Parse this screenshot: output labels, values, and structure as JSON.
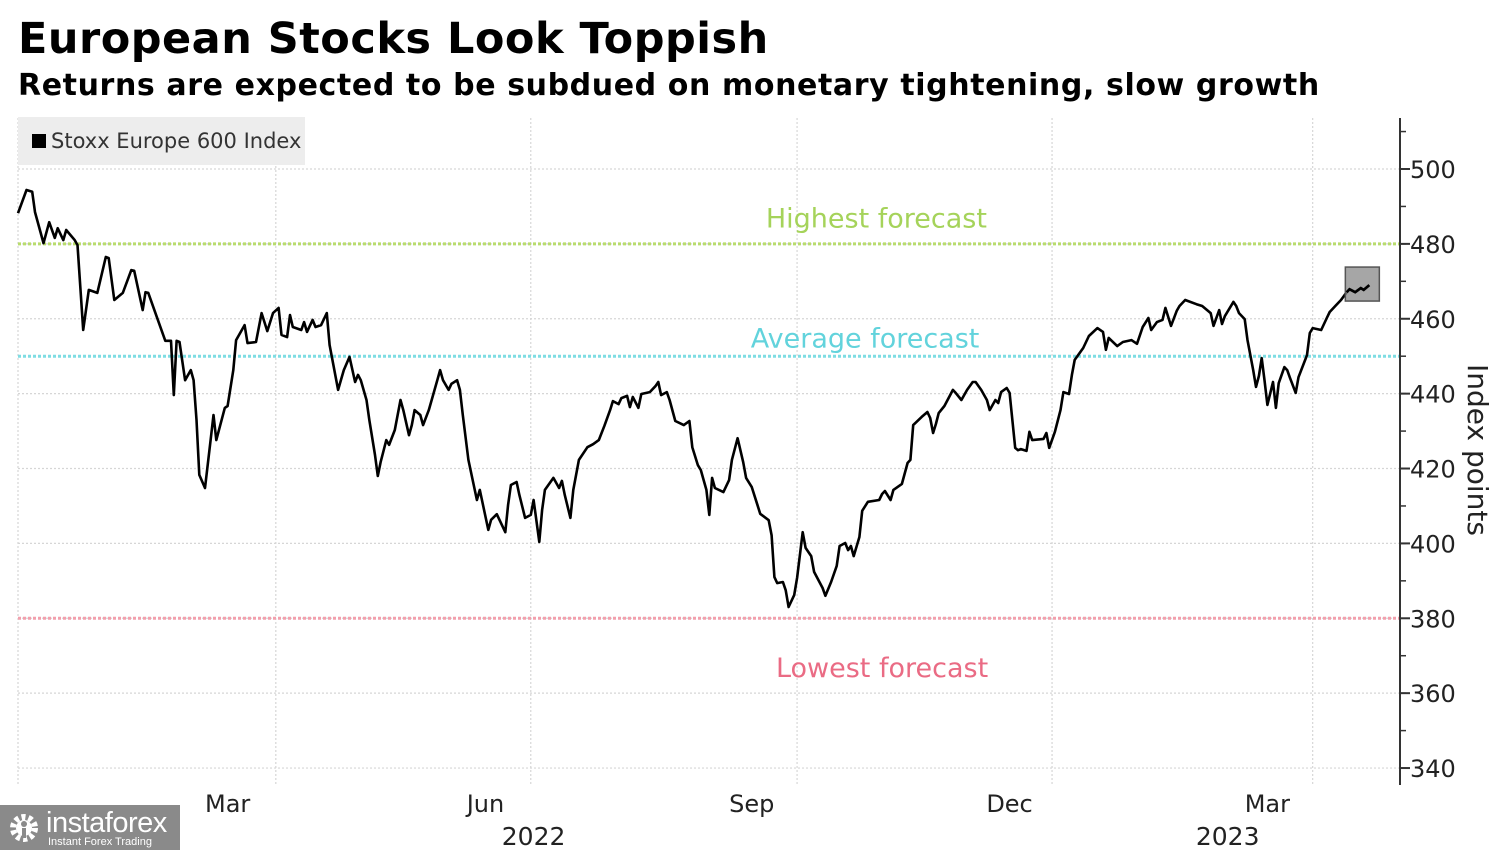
{
  "chart_data": {
    "type": "line",
    "title": "European Stocks Look Toppish",
    "subtitle": "Returns are expected to be subdued on monetary tightening, slow growth",
    "ylabel": "Index points",
    "xlabel": "",
    "x_unit": "days since start of 2022",
    "xlim": [
      0,
      486
    ],
    "ylim": [
      335,
      513
    ],
    "grid": true,
    "legend": {
      "position": "top-left",
      "entries": [
        "Stoxx Europe 600 Index"
      ]
    },
    "y_ticks": [
      340,
      360,
      380,
      400,
      420,
      440,
      460,
      480,
      500
    ],
    "y_tick_labels": [
      "340",
      "360",
      "380",
      "400",
      "420",
      "440",
      "460",
      "480",
      "500"
    ],
    "x_gridlines": [
      0,
      91,
      181,
      275,
      365,
      457
    ],
    "x_ticks": [
      {
        "x": 74,
        "label": "Mar"
      },
      {
        "x": 165,
        "label": "Jun"
      },
      {
        "x": 259,
        "label": "Sep"
      },
      {
        "x": 350,
        "label": "Dec"
      },
      {
        "x": 441,
        "label": "Mar"
      }
    ],
    "year_labels": [
      {
        "x": 182,
        "label": "2022"
      },
      {
        "x": 427,
        "label": "2023"
      }
    ],
    "reference_lines": [
      {
        "label": "Highest forecast",
        "value": 480,
        "color": "#b9dc6e",
        "text_color": "#a5d35a",
        "label_x": 303
      },
      {
        "label": "Average forecast",
        "value": 450,
        "color": "#7fdde3",
        "text_color": "#62d3dc",
        "label_x": 299
      },
      {
        "label": "Lowest forecast",
        "value": 380,
        "color": "#f2a0ad",
        "text_color": "#ea6b84",
        "label_x": 305
      }
    ],
    "label_values": {
      "Highest forecast": 487,
      "Average forecast": 455,
      "Lowest forecast": 367
    },
    "series": [
      {
        "name": "Stoxx Europe 600 Index",
        "color": "#000000",
        "x": [
          0,
          3,
          5,
          6,
          9,
          11,
          13,
          14,
          16,
          17,
          20,
          21,
          23,
          25,
          28,
          31,
          32,
          34,
          37,
          40,
          41,
          44,
          45,
          46,
          49,
          52,
          54,
          55,
          56,
          57,
          59,
          61,
          62,
          63,
          64,
          66,
          68,
          69,
          70,
          73,
          74,
          76,
          77,
          80,
          81,
          84,
          86,
          88,
          90,
          92,
          93,
          95,
          96,
          97,
          100,
          101,
          102,
          104,
          105,
          107,
          109,
          110,
          113,
          115,
          117,
          119,
          120,
          121,
          123,
          124,
          126,
          127,
          128,
          130,
          131,
          133,
          135,
          136,
          138,
          139,
          140,
          142,
          143,
          145,
          148,
          149,
          150,
          152,
          153,
          155,
          156,
          157,
          159,
          162,
          163,
          166,
          167,
          169,
          172,
          173,
          174,
          176,
          177,
          179,
          181,
          182,
          184,
          185,
          186,
          189,
          191,
          192,
          193,
          195,
          196,
          198,
          201,
          203,
          205,
          207,
          209,
          210,
          212,
          213,
          215,
          216,
          217,
          219,
          220,
          223,
          225,
          226,
          227,
          229,
          230,
          232,
          235,
          237,
          238,
          240,
          241,
          243,
          244,
          245,
          246,
          249,
          251,
          252,
          254,
          256,
          257,
          259,
          261,
          262,
          265,
          266,
          267,
          268,
          270,
          271,
          272,
          274,
          275,
          277,
          278,
          280,
          281,
          284,
          285,
          287,
          289,
          290,
          292,
          293,
          294,
          295,
          297,
          298,
          300,
          304,
          305,
          306,
          308,
          309,
          312,
          314,
          315,
          316,
          319,
          321,
          322,
          323,
          324,
          325,
          327,
          330,
          331,
          333,
          335,
          337,
          338,
          340,
          342,
          343,
          345,
          346,
          347,
          349,
          350,
          352,
          353,
          354,
          356,
          357,
          358,
          362,
          363,
          364,
          366,
          368,
          369,
          371,
          372,
          373,
          376,
          378,
          381,
          383,
          384,
          385,
          388,
          390,
          393,
          395,
          397,
          399,
          400,
          402,
          404,
          405,
          407,
          409,
          410,
          412,
          416,
          418,
          421,
          422,
          424,
          425,
          426,
          429,
          430,
          431,
          433,
          434,
          436,
          437,
          438,
          439,
          440,
          441,
          443,
          444,
          445,
          447,
          448,
          449,
          451,
          452,
          455,
          456,
          457,
          460,
          462,
          463,
          465,
          467,
          469,
          470,
          472,
          474,
          475,
          477
        ],
        "values": [
          488.2,
          494.4,
          493.9,
          488.5,
          480.2,
          485.8,
          481.6,
          484.2,
          481.0,
          483.7,
          481.0,
          479.7,
          457.0,
          467.7,
          466.9,
          476.5,
          476.2,
          465.0,
          466.9,
          473.0,
          472.8,
          462.3,
          467.1,
          466.9,
          460.5,
          454.1,
          454.1,
          439.6,
          454.1,
          453.8,
          443.6,
          446.3,
          443.6,
          433.0,
          418.3,
          414.8,
          427.6,
          434.3,
          427.6,
          436.2,
          436.7,
          446.3,
          454.3,
          458.3,
          453.5,
          453.8,
          461.5,
          456.7,
          461.5,
          462.9,
          455.7,
          455.1,
          461.0,
          457.8,
          457.0,
          459.1,
          456.5,
          459.7,
          457.8,
          458.3,
          461.5,
          453.0,
          441.0,
          446.3,
          449.8,
          443.1,
          445.0,
          443.6,
          438.3,
          433.0,
          423.6,
          418.0,
          421.7,
          427.6,
          426.3,
          430.3,
          438.3,
          435.6,
          428.9,
          431.6,
          435.6,
          434.3,
          431.6,
          435.6,
          443.6,
          446.3,
          443.6,
          441.0,
          442.6,
          443.6,
          441.0,
          434.3,
          422.3,
          411.6,
          414.3,
          403.6,
          406.3,
          407.8,
          403.0,
          410.3,
          415.6,
          416.4,
          412.9,
          406.8,
          407.6,
          411.6,
          400.4,
          408.9,
          414.3,
          417.5,
          414.8,
          416.7,
          412.9,
          406.8,
          414.3,
          422.3,
          425.7,
          426.5,
          427.6,
          431.4,
          435.6,
          438.0,
          437.2,
          438.8,
          439.4,
          436.4,
          439.1,
          436.2,
          439.9,
          440.4,
          442.0,
          443.1,
          439.6,
          440.4,
          438.3,
          432.7,
          431.6,
          432.7,
          425.7,
          420.9,
          419.6,
          414.3,
          407.6,
          417.5,
          414.8,
          413.7,
          416.9,
          422.3,
          428.1,
          421.7,
          417.5,
          415.1,
          410.3,
          407.9,
          406.2,
          402.2,
          391.0,
          389.4,
          389.7,
          387.5,
          383.0,
          386.2,
          390.8,
          403.0,
          398.8,
          396.6,
          392.4,
          388.1,
          386.0,
          389.7,
          394.0,
          399.3,
          400.1,
          398.2,
          399.3,
          396.6,
          401.7,
          408.7,
          411.1,
          411.6,
          413.2,
          414.0,
          411.6,
          414.3,
          415.9,
          421.5,
          422.3,
          431.6,
          433.8,
          435.1,
          433.5,
          429.5,
          431.9,
          434.8,
          436.7,
          441.0,
          440.2,
          438.3,
          441.0,
          443.1,
          443.1,
          441.0,
          438.3,
          435.6,
          438.3,
          437.5,
          440.4,
          441.5,
          440.2,
          425.5,
          424.9,
          425.2,
          424.7,
          429.8,
          427.6,
          427.9,
          429.5,
          425.5,
          429.8,
          435.6,
          440.4,
          439.9,
          445.0,
          449.0,
          452.2,
          455.4,
          457.5,
          456.5,
          451.7,
          454.9,
          452.7,
          453.8,
          454.3,
          453.3,
          457.8,
          460.2,
          457.0,
          459.1,
          459.7,
          462.9,
          458.1,
          462.1,
          463.4,
          465.0,
          463.9,
          463.4,
          461.5,
          458.1,
          462.3,
          458.6,
          460.7,
          464.5,
          463.4,
          461.5,
          459.9,
          454.3,
          446.3,
          441.8,
          444.7,
          449.5,
          443.6,
          437.0,
          443.1,
          436.2,
          442.8,
          447.1,
          446.3,
          444.2,
          440.2,
          444.4,
          450.3,
          456.2,
          457.5,
          457.0,
          460.2,
          461.8,
          463.4,
          465.0,
          467.1,
          467.9,
          467.1,
          468.2,
          467.7,
          469.0
        ]
      }
    ]
  },
  "watermark": {
    "name": "instaforex",
    "tagline": "Instant Forex Trading"
  }
}
